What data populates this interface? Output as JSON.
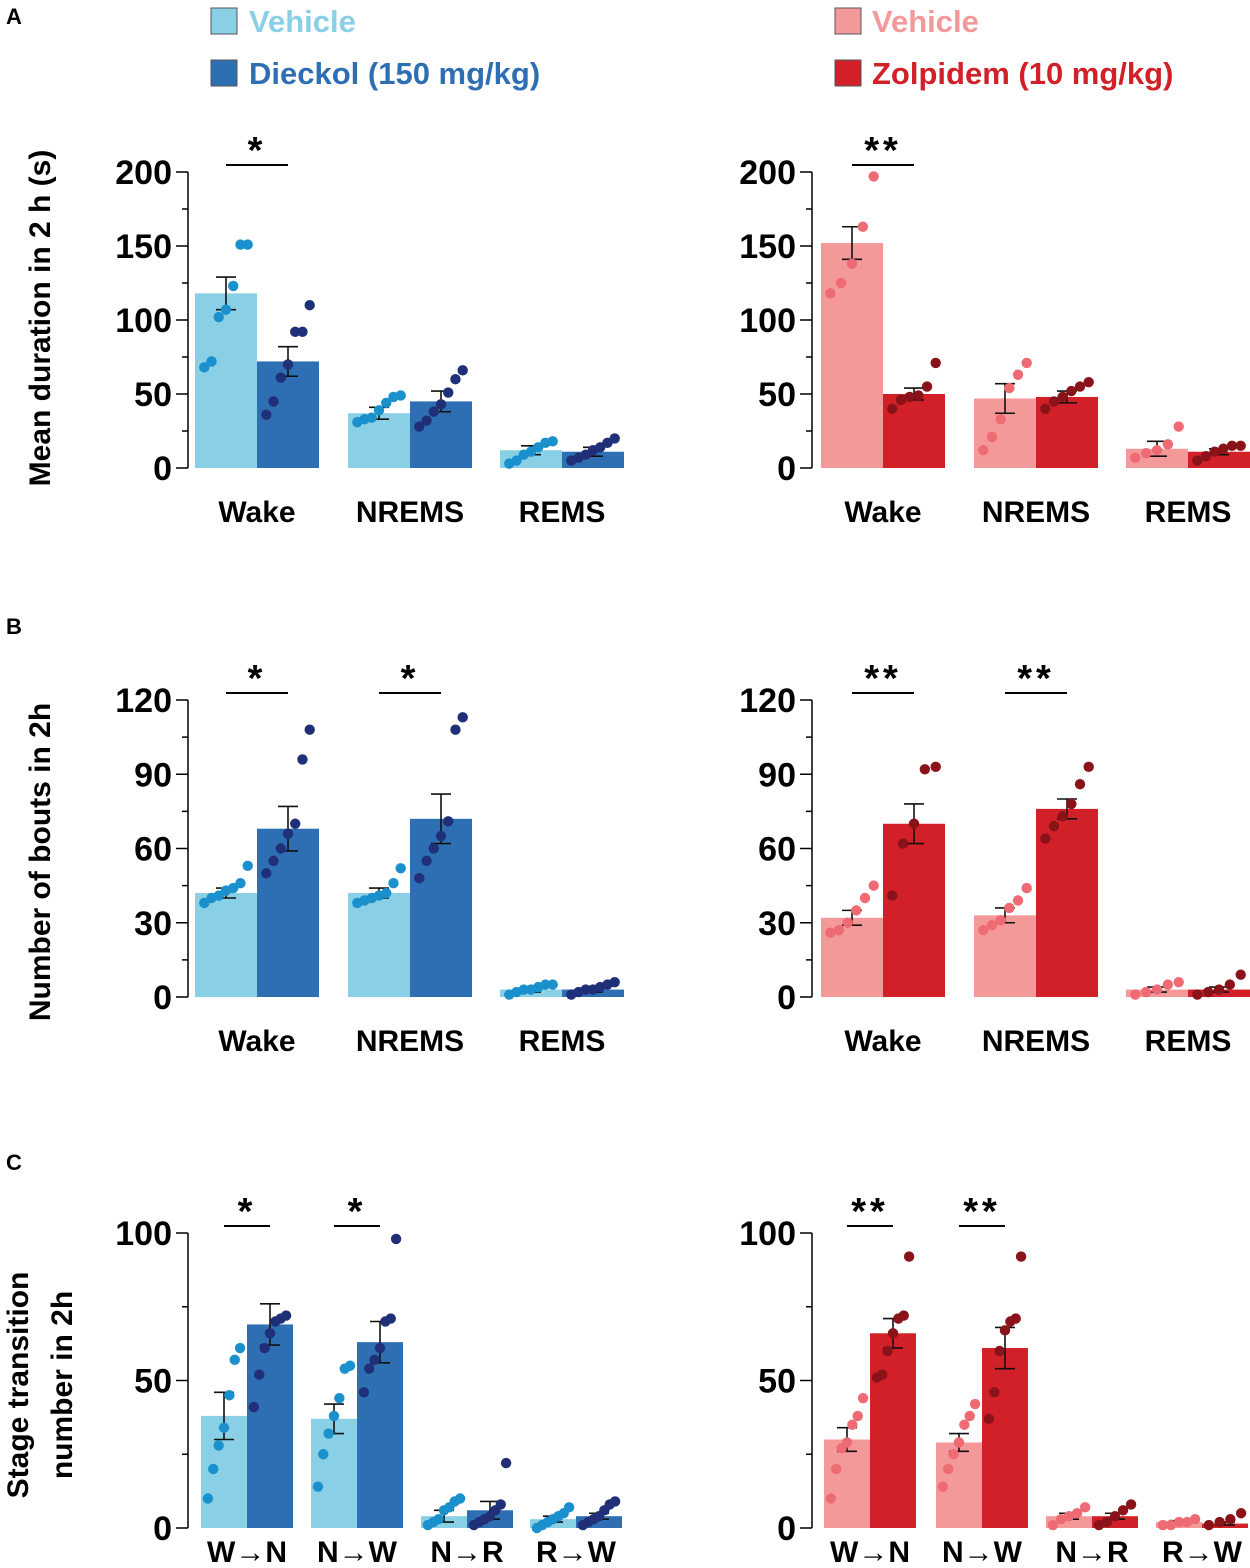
{
  "panel_labels": [
    "A",
    "B",
    "C"
  ],
  "legend": {
    "left": [
      {
        "label": "Vehicle",
        "color": "#89cfe6"
      },
      {
        "label": "Dieckol (150 mg/kg)",
        "color": "#2e6fb3"
      }
    ],
    "right": [
      {
        "label": "Vehicle",
        "color": "#f4999a"
      },
      {
        "label": "Zolpidem (10 mg/kg)",
        "color": "#d12027"
      }
    ]
  },
  "colors": {
    "vehicle_blue_bar": "#89cfe6",
    "vehicle_blue_dot": "#1a91cc",
    "drug_blue_bar": "#2e6fb3",
    "drug_blue_dot": "#1f2f78",
    "vehicle_red_bar": "#f4999a",
    "vehicle_red_dot": "#ee6b74",
    "drug_red_bar": "#d12027",
    "drug_red_dot": "#8a1219"
  },
  "chart_data": [
    {
      "id": "A-dieckol",
      "type": "bar",
      "panel": "A",
      "group": "blue",
      "ylabel": "Mean duration in 2 h (s)",
      "ylim": [
        0,
        200
      ],
      "yticks": [
        0,
        50,
        100,
        150,
        200
      ],
      "categories": [
        "Wake",
        "NREMS",
        "REMS"
      ],
      "series": [
        {
          "name": "Vehicle",
          "values": [
            118,
            37,
            12
          ],
          "sem": [
            11,
            4,
            3
          ],
          "points": [
            [
              68,
              72,
              102,
              107,
              123,
              151,
              151
            ],
            [
              31,
              33,
              34,
              39,
              44,
              48,
              49
            ],
            [
              3,
              5,
              9,
              11,
              14,
              17,
              18
            ]
          ]
        },
        {
          "name": "Dieckol (150 mg/kg)",
          "values": [
            72,
            45,
            11
          ],
          "sem": [
            10,
            7,
            3
          ],
          "points": [
            [
              36,
              45,
              61,
              70,
              92,
              92,
              110
            ],
            [
              28,
              32,
              38,
              43,
              51,
              60,
              66
            ],
            [
              5,
              7,
              9,
              12,
              14,
              17,
              20
            ]
          ]
        }
      ],
      "significance": [
        {
          "category": "Wake",
          "label": "*"
        }
      ]
    },
    {
      "id": "A-zolpidem",
      "type": "bar",
      "panel": "A",
      "group": "red",
      "ylabel": "",
      "ylim": [
        0,
        200
      ],
      "yticks": [
        0,
        50,
        100,
        150,
        200
      ],
      "categories": [
        "Wake",
        "NREMS",
        "REMS"
      ],
      "series": [
        {
          "name": "Vehicle",
          "values": [
            152,
            47,
            13
          ],
          "sem": [
            11,
            10,
            5
          ],
          "points": [
            [
              118,
              125,
              138,
              163,
              197
            ],
            [
              12,
              21,
              33,
              54,
              63,
              71
            ],
            [
              7,
              10,
              12,
              16,
              28
            ]
          ]
        },
        {
          "name": "Zolpidem (10 mg/kg)",
          "values": [
            50,
            48,
            11
          ],
          "sem": [
            4,
            4,
            2
          ],
          "points": [
            [
              40,
              46,
              48,
              49,
              55,
              71
            ],
            [
              40,
              45,
              48,
              52,
              55,
              58
            ],
            [
              5,
              8,
              11,
              13,
              15,
              15
            ]
          ]
        }
      ],
      "significance": [
        {
          "category": "Wake",
          "label": "**"
        }
      ]
    },
    {
      "id": "B-dieckol",
      "type": "bar",
      "panel": "B",
      "group": "blue",
      "ylabel": "Number of bouts in 2h",
      "ylim": [
        0,
        120
      ],
      "yticks": [
        0,
        30,
        60,
        90,
        120
      ],
      "categories": [
        "Wake",
        "NREMS",
        "REMS"
      ],
      "series": [
        {
          "name": "Vehicle",
          "values": [
            42,
            42,
            3
          ],
          "sem": [
            2,
            2,
            1
          ],
          "points": [
            [
              38,
              40,
              41,
              43,
              44,
              46,
              53
            ],
            [
              38,
              39,
              40,
              41,
              42,
              46,
              52
            ],
            [
              1,
              2,
              3,
              3,
              4,
              5,
              5
            ]
          ]
        },
        {
          "name": "Dieckol (150 mg/kg)",
          "values": [
            68,
            72,
            3
          ],
          "sem": [
            9,
            10,
            1
          ],
          "points": [
            [
              50,
              55,
              60,
              66,
              70,
              96,
              108
            ],
            [
              48,
              55,
              60,
              65,
              71,
              108,
              113
            ],
            [
              1,
              2,
              3,
              3,
              4,
              5,
              6
            ]
          ]
        }
      ],
      "significance": [
        {
          "category": "Wake",
          "label": "*"
        },
        {
          "category": "NREMS",
          "label": "*"
        }
      ]
    },
    {
      "id": "B-zolpidem",
      "type": "bar",
      "panel": "B",
      "group": "red",
      "ylabel": "",
      "ylim": [
        0,
        120
      ],
      "yticks": [
        0,
        30,
        60,
        90,
        120
      ],
      "categories": [
        "Wake",
        "NREMS",
        "REMS"
      ],
      "series": [
        {
          "name": "Vehicle",
          "values": [
            32,
            33,
            3
          ],
          "sem": [
            3,
            3,
            1
          ],
          "points": [
            [
              26,
              27,
              30,
              35,
              40,
              45
            ],
            [
              27,
              29,
              31,
              36,
              39,
              44
            ],
            [
              1,
              2,
              3,
              5,
              6
            ]
          ]
        },
        {
          "name": "Zolpidem (10 mg/kg)",
          "values": [
            70,
            76,
            3
          ],
          "sem": [
            8,
            4,
            1
          ],
          "points": [
            [
              41,
              62,
              70,
              92,
              93
            ],
            [
              64,
              69,
              73,
              78,
              86,
              93
            ],
            [
              1,
              2,
              3,
              5,
              9
            ]
          ]
        }
      ],
      "significance": [
        {
          "category": "Wake",
          "label": "**"
        },
        {
          "category": "NREMS",
          "label": "**"
        }
      ]
    },
    {
      "id": "C-dieckol",
      "type": "bar",
      "panel": "C",
      "group": "blue",
      "ylabel": "Stage transition number in 2h",
      "ylim": [
        0,
        100
      ],
      "yticks": [
        0,
        50,
        100
      ],
      "categories": [
        "W→N",
        "N→W",
        "N→R",
        "R→W"
      ],
      "series": [
        {
          "name": "Vehicle",
          "values": [
            38,
            37,
            4,
            3
          ],
          "sem": [
            8,
            5,
            2,
            1
          ],
          "points": [
            [
              10,
              20,
              28,
              34,
              45,
              57,
              61
            ],
            [
              14,
              25,
              32,
              38,
              44,
              54,
              55
            ],
            [
              1,
              2,
              3,
              6,
              7,
              9,
              10
            ],
            [
              0,
              1,
              2,
              3,
              4,
              5,
              7
            ]
          ]
        },
        {
          "name": "Dieckol (150 mg/kg)",
          "values": [
            69,
            63,
            6,
            4
          ],
          "sem": [
            7,
            7,
            3,
            1
          ],
          "points": [
            [
              41,
              52,
              61,
              66,
              70,
              71,
              72
            ],
            [
              46,
              54,
              57,
              61,
              70,
              71,
              98
            ],
            [
              1,
              2,
              3,
              4,
              6,
              8,
              22
            ],
            [
              1,
              2,
              3,
              4,
              6,
              8,
              9
            ]
          ]
        }
      ],
      "significance": [
        {
          "category": "W→N",
          "label": "*"
        },
        {
          "category": "N→W",
          "label": "*"
        }
      ]
    },
    {
      "id": "C-zolpidem",
      "type": "bar",
      "panel": "C",
      "group": "red",
      "ylabel": "",
      "ylim": [
        0,
        100
      ],
      "yticks": [
        0,
        50,
        100
      ],
      "categories": [
        "W→N",
        "N→W",
        "N→R",
        "R→W"
      ],
      "series": [
        {
          "name": "Vehicle",
          "values": [
            30,
            29,
            4,
            2
          ],
          "sem": [
            4,
            3,
            1,
            0.5
          ],
          "points": [
            [
              10,
              20,
              27,
              29,
              35,
              38,
              44
            ],
            [
              14,
              20,
              25,
              29,
              35,
              38,
              42
            ],
            [
              1,
              3,
              4,
              5,
              7
            ],
            [
              1,
              1,
              2,
              2,
              3
            ]
          ]
        },
        {
          "name": "Zolpidem (10 mg/kg)",
          "values": [
            66,
            61,
            4,
            1.5
          ],
          "sem": [
            5,
            7,
            1,
            0.5
          ],
          "points": [
            [
              51,
              52,
              60,
              66,
              71,
              72,
              92
            ],
            [
              37,
              46,
              60,
              67,
              70,
              71,
              92
            ],
            [
              1,
              2,
              4,
              6,
              8
            ],
            [
              1,
              2,
              3,
              5
            ]
          ]
        }
      ],
      "significance": [
        {
          "category": "W→N",
          "label": "**"
        },
        {
          "category": "N→W",
          "label": "**"
        }
      ]
    }
  ]
}
